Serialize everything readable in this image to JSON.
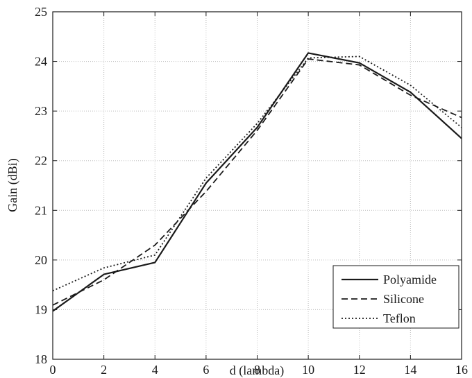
{
  "chart_data": {
    "type": "line",
    "xlabel": "d (lambda)",
    "ylabel": "Gain (dBi)",
    "xlim": [
      0,
      16
    ],
    "ylim": [
      18,
      25
    ],
    "x_ticks": [
      0,
      2,
      4,
      6,
      8,
      10,
      12,
      14,
      16
    ],
    "y_ticks": [
      18,
      19,
      20,
      21,
      22,
      23,
      24,
      25
    ],
    "x_tick_labels": [
      "0",
      "2",
      "4",
      "6",
      "8",
      "10",
      "12",
      "14",
      "16"
    ],
    "y_tick_labels": [
      "18",
      "19",
      "20",
      "21",
      "22",
      "23",
      "24",
      "25"
    ],
    "grid": true,
    "legend_position": "bottom-right",
    "x": [
      0,
      2,
      4,
      6,
      8,
      10,
      12,
      14,
      16
    ],
    "series": [
      {
        "name": "Polyamide",
        "line_style": "solid",
        "values": [
          18.97,
          19.71,
          19.95,
          21.55,
          22.67,
          24.17,
          23.97,
          23.38,
          22.45
        ]
      },
      {
        "name": "Silicone",
        "line_style": "dashed",
        "values": [
          19.09,
          19.6,
          20.3,
          21.38,
          22.61,
          24.05,
          23.93,
          23.32,
          22.87
        ]
      },
      {
        "name": "Teflon",
        "line_style": "dotted",
        "values": [
          19.38,
          19.84,
          20.1,
          21.65,
          22.75,
          24.07,
          24.1,
          23.52,
          22.67
        ]
      }
    ],
    "colors": {
      "line": "#1a1a1a",
      "grid": "#bdbdbd",
      "axis": "#1a1a1a",
      "background": "#ffffff"
    }
  }
}
